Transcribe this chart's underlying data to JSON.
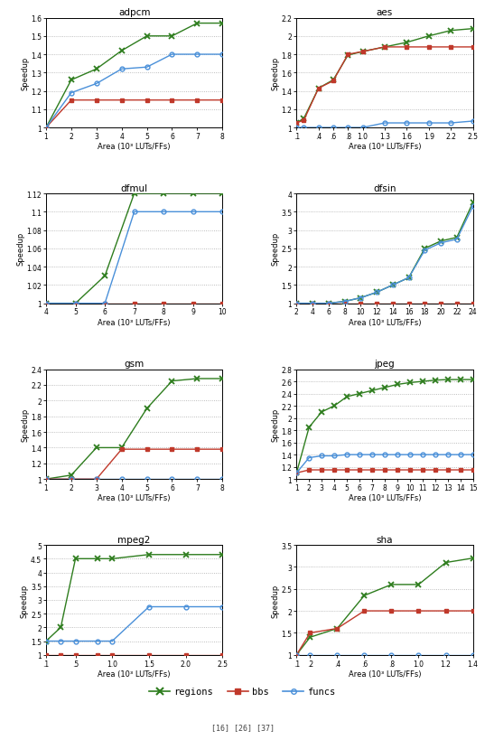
{
  "plots": [
    {
      "title": "adpcm",
      "xlabel": "Area (10³ LUTs/FFs)",
      "ylabel": "Speedup",
      "xlim": [
        1,
        8
      ],
      "ylim": [
        1.0,
        1.6
      ],
      "xticks": [
        1,
        2,
        3,
        4,
        5,
        6,
        7,
        8
      ],
      "xtick_labels": [
        "1",
        "2",
        "3",
        "4",
        "5",
        "6",
        "7",
        "8"
      ],
      "yticks": [
        1.0,
        1.1,
        1.2,
        1.3,
        1.4,
        1.5,
        1.6
      ],
      "ytick_labels": [
        "1",
        "1.1",
        "1.2",
        "1.3",
        "1.4",
        "1.5",
        "1.6"
      ],
      "regions_x": [
        1,
        2,
        3,
        4,
        5,
        6,
        7,
        8
      ],
      "regions_y": [
        1.0,
        1.26,
        1.32,
        1.42,
        1.5,
        1.5,
        1.57,
        1.57
      ],
      "bbs_x": [
        1,
        2,
        3,
        4,
        5,
        6,
        7,
        8
      ],
      "bbs_y": [
        1.0,
        1.15,
        1.15,
        1.15,
        1.15,
        1.15,
        1.15,
        1.15
      ],
      "funcs_x": [
        1,
        2,
        3,
        4,
        5,
        6,
        7,
        8
      ],
      "funcs_y": [
        1.0,
        1.19,
        1.24,
        1.32,
        1.33,
        1.4,
        1.4,
        1.4
      ]
    },
    {
      "title": "aes",
      "xlabel": "Area (10³ LUTs/FFs)",
      "ylabel": "Speedup",
      "xlim": [
        0.1,
        2.5
      ],
      "ylim": [
        1.0,
        2.2
      ],
      "xticks": [
        0.1,
        0.4,
        0.6,
        0.8,
        1.0,
        1.3,
        1.6,
        1.9,
        2.2,
        2.5
      ],
      "xtick_labels": [
        ".1",
        ".4",
        ".6",
        ".8",
        "1.0",
        "1.3",
        "1.6",
        "1.9",
        "2.2",
        "2.5"
      ],
      "yticks": [
        1.0,
        1.2,
        1.4,
        1.6,
        1.8,
        2.0,
        2.2
      ],
      "ytick_labels": [
        "1",
        "1.2",
        "1.4",
        "1.6",
        "1.8",
        "2",
        "2.2"
      ],
      "regions_x": [
        0.1,
        0.2,
        0.4,
        0.6,
        0.8,
        1.0,
        1.3,
        1.6,
        1.9,
        2.2,
        2.5
      ],
      "regions_y": [
        1.05,
        1.1,
        1.43,
        1.52,
        1.79,
        1.83,
        1.88,
        1.93,
        2.0,
        2.06,
        2.08
      ],
      "bbs_x": [
        0.1,
        0.2,
        0.4,
        0.6,
        0.8,
        1.0,
        1.3,
        1.6,
        1.9,
        2.2,
        2.5
      ],
      "bbs_y": [
        1.05,
        1.08,
        1.43,
        1.51,
        1.8,
        1.83,
        1.88,
        1.88,
        1.88,
        1.88,
        1.88
      ],
      "funcs_x": [
        0.1,
        0.2,
        0.4,
        0.6,
        0.8,
        1.0,
        1.3,
        1.6,
        1.9,
        2.2,
        2.5
      ],
      "funcs_y": [
        1.0,
        1.0,
        1.0,
        1.0,
        1.0,
        1.0,
        1.05,
        1.05,
        1.05,
        1.05,
        1.07
      ]
    },
    {
      "title": "dfmul",
      "xlabel": "Area (10³ LUTs/FFs)",
      "ylabel": "Speedup",
      "xlim": [
        4,
        10
      ],
      "ylim": [
        1.0,
        1.12
      ],
      "xticks": [
        4,
        5,
        6,
        7,
        8,
        9,
        10
      ],
      "xtick_labels": [
        "4",
        "5",
        "6",
        "7",
        "8",
        "9",
        "10"
      ],
      "yticks": [
        1.0,
        1.02,
        1.04,
        1.06,
        1.08,
        1.1,
        1.12
      ],
      "ytick_labels": [
        "1",
        "1.02",
        "1.04",
        "1.06",
        "1.08",
        "1.1",
        "1.12"
      ],
      "regions_x": [
        4,
        5,
        6,
        7,
        8,
        9,
        10
      ],
      "regions_y": [
        1.0,
        1.0,
        1.03,
        1.12,
        1.12,
        1.12,
        1.12
      ],
      "bbs_x": [
        4,
        5,
        6,
        7,
        8,
        9,
        10
      ],
      "bbs_y": [
        1.0,
        1.0,
        1.0,
        1.0,
        1.0,
        1.0,
        1.0
      ],
      "funcs_x": [
        4,
        5,
        6,
        7,
        8,
        9,
        10
      ],
      "funcs_y": [
        1.0,
        1.0,
        1.0,
        1.1,
        1.1,
        1.1,
        1.1
      ]
    },
    {
      "title": "dfsin",
      "xlabel": "Area (10³ LUTs/FFs)",
      "ylabel": "Speedup",
      "xlim": [
        2,
        24
      ],
      "ylim": [
        1.0,
        4.0
      ],
      "xticks": [
        2,
        4,
        6,
        8,
        10,
        12,
        14,
        16,
        18,
        20,
        22,
        24
      ],
      "xtick_labels": [
        "2",
        "4",
        "6",
        "8",
        "10",
        "12",
        "14",
        "16",
        "18",
        "20",
        "22",
        "24"
      ],
      "yticks": [
        1.0,
        1.5,
        2.0,
        2.5,
        3.0,
        3.5,
        4.0
      ],
      "ytick_labels": [
        "1",
        "1.5",
        "2",
        "2.5",
        "3",
        "3.5",
        "4"
      ],
      "regions_x": [
        2,
        4,
        6,
        8,
        10,
        12,
        14,
        16,
        18,
        20,
        22,
        24
      ],
      "regions_y": [
        1.0,
        1.0,
        1.0,
        1.05,
        1.15,
        1.3,
        1.5,
        1.7,
        2.5,
        2.7,
        2.8,
        3.75
      ],
      "bbs_x": [
        2,
        4,
        6,
        8,
        10,
        12,
        14,
        16,
        18,
        20,
        22,
        24
      ],
      "bbs_y": [
        1.0,
        1.0,
        1.0,
        1.0,
        1.0,
        1.0,
        1.0,
        1.0,
        1.0,
        1.0,
        1.0,
        1.0
      ],
      "funcs_x": [
        2,
        4,
        6,
        8,
        10,
        12,
        14,
        16,
        18,
        20,
        22,
        24
      ],
      "funcs_y": [
        1.0,
        1.0,
        1.0,
        1.05,
        1.15,
        1.3,
        1.5,
        1.7,
        2.45,
        2.65,
        2.75,
        3.65
      ]
    },
    {
      "title": "gsm",
      "xlabel": "Area (10³ LUTs/FFs)",
      "ylabel": "Speedup",
      "xlim": [
        1,
        8
      ],
      "ylim": [
        1.0,
        2.4
      ],
      "xticks": [
        1,
        2,
        3,
        4,
        5,
        6,
        7,
        8
      ],
      "xtick_labels": [
        "1",
        "2",
        "3",
        "4",
        "5",
        "6",
        "7",
        "8"
      ],
      "yticks": [
        1.0,
        1.2,
        1.4,
        1.6,
        1.8,
        2.0,
        2.2,
        2.4
      ],
      "ytick_labels": [
        "1",
        "1.2",
        "1.4",
        "1.6",
        "1.8",
        "2",
        "2.2",
        "2.4"
      ],
      "regions_x": [
        1,
        2,
        3,
        4,
        5,
        6,
        7,
        8
      ],
      "regions_y": [
        1.0,
        1.05,
        1.4,
        1.4,
        1.9,
        2.25,
        2.28,
        2.28
      ],
      "bbs_x": [
        1,
        2,
        3,
        4,
        5,
        6,
        7,
        8
      ],
      "bbs_y": [
        1.0,
        1.0,
        1.0,
        1.38,
        1.38,
        1.38,
        1.38,
        1.38
      ],
      "funcs_x": [
        1,
        2,
        3,
        4,
        5,
        6,
        7,
        8
      ],
      "funcs_y": [
        1.0,
        1.0,
        1.0,
        1.0,
        1.0,
        1.0,
        1.0,
        1.0
      ]
    },
    {
      "title": "jpeg",
      "xlabel": "Area (10³ LUTs/FFs)",
      "ylabel": "Speedup",
      "xlim": [
        1,
        15
      ],
      "ylim": [
        1.0,
        2.8
      ],
      "xticks": [
        1,
        2,
        3,
        4,
        5,
        6,
        7,
        8,
        9,
        10,
        11,
        12,
        13,
        14,
        15
      ],
      "xtick_labels": [
        "1",
        "2",
        "3",
        "4",
        "5",
        "6",
        "7",
        "8",
        "9",
        "10",
        "11",
        "12",
        "13",
        "14",
        "15"
      ],
      "yticks": [
        1.0,
        1.2,
        1.4,
        1.6,
        1.8,
        2.0,
        2.2,
        2.4,
        2.6,
        2.8
      ],
      "ytick_labels": [
        "1",
        "1.2",
        "1.4",
        "1.6",
        "1.8",
        "2",
        "2.2",
        "2.4",
        "2.6",
        "2.8"
      ],
      "regions_x": [
        1,
        2,
        3,
        4,
        5,
        6,
        7,
        8,
        9,
        10,
        11,
        12,
        13,
        14,
        15
      ],
      "regions_y": [
        1.1,
        1.85,
        2.1,
        2.2,
        2.35,
        2.4,
        2.45,
        2.5,
        2.55,
        2.58,
        2.6,
        2.62,
        2.63,
        2.63,
        2.63
      ],
      "bbs_x": [
        1,
        2,
        3,
        4,
        5,
        6,
        7,
        8,
        9,
        10,
        11,
        12,
        13,
        14,
        15
      ],
      "bbs_y": [
        1.1,
        1.15,
        1.15,
        1.15,
        1.15,
        1.15,
        1.15,
        1.15,
        1.15,
        1.15,
        1.15,
        1.15,
        1.15,
        1.15,
        1.15
      ],
      "funcs_x": [
        1,
        2,
        3,
        4,
        5,
        6,
        7,
        8,
        9,
        10,
        11,
        12,
        13,
        14,
        15
      ],
      "funcs_y": [
        1.1,
        1.35,
        1.38,
        1.38,
        1.4,
        1.4,
        1.4,
        1.4,
        1.4,
        1.4,
        1.4,
        1.4,
        1.4,
        1.4,
        1.4
      ]
    },
    {
      "title": "mpeg2",
      "xlabel": "Area (10³ LUTs/FFs)",
      "ylabel": "Speedup",
      "xlim": [
        0.1,
        2.5
      ],
      "ylim": [
        1.0,
        5.0
      ],
      "xticks": [
        0.1,
        0.5,
        1.0,
        1.5,
        2.0,
        2.5
      ],
      "xtick_labels": [
        ".1",
        ".5",
        "1.0",
        "1.5",
        "2.0",
        "2.5"
      ],
      "yticks": [
        1.0,
        1.5,
        2.0,
        2.5,
        3.0,
        3.5,
        4.0,
        4.5,
        5.0
      ],
      "ytick_labels": [
        "1",
        "1.5",
        "2",
        "2.5",
        "3",
        "3.5",
        "4",
        "4.5",
        "5"
      ],
      "regions_x": [
        0.1,
        0.3,
        0.5,
        0.8,
        1.0,
        1.5,
        2.0,
        2.5
      ],
      "regions_y": [
        1.5,
        2.0,
        4.5,
        4.5,
        4.5,
        4.65,
        4.65,
        4.65
      ],
      "bbs_x": [
        0.1,
        0.3,
        0.5,
        0.8,
        1.0,
        1.5,
        2.0,
        2.5
      ],
      "bbs_y": [
        1.0,
        1.0,
        1.0,
        1.0,
        1.0,
        1.0,
        1.0,
        1.0
      ],
      "funcs_x": [
        0.1,
        0.3,
        0.5,
        0.8,
        1.0,
        1.5,
        2.0,
        2.5
      ],
      "funcs_y": [
        1.5,
        1.5,
        1.5,
        1.5,
        1.5,
        2.75,
        2.75,
        2.75
      ]
    },
    {
      "title": "sha",
      "xlabel": "Area (10³ LUTs/FFs)",
      "ylabel": "Speedup",
      "xlim": [
        0.1,
        1.4
      ],
      "ylim": [
        1.0,
        3.5
      ],
      "xticks": [
        0.1,
        0.2,
        0.4,
        0.6,
        0.8,
        1.0,
        1.2,
        1.4
      ],
      "xtick_labels": [
        ".1",
        ".2",
        ".4",
        ".6",
        ".8",
        "1.0",
        "1.2",
        "1.4"
      ],
      "yticks": [
        1.0,
        1.5,
        2.0,
        2.5,
        3.0,
        3.5
      ],
      "ytick_labels": [
        "1",
        "1.5",
        "2",
        "2.5",
        "3",
        "3.5"
      ],
      "regions_x": [
        0.1,
        0.2,
        0.4,
        0.6,
        0.8,
        1.0,
        1.2,
        1.4
      ],
      "regions_y": [
        1.0,
        1.4,
        1.6,
        2.35,
        2.6,
        2.6,
        3.1,
        3.2
      ],
      "bbs_x": [
        0.1,
        0.2,
        0.4,
        0.6,
        0.8,
        1.0,
        1.2,
        1.4
      ],
      "bbs_y": [
        1.0,
        1.5,
        1.6,
        2.0,
        2.0,
        2.0,
        2.0,
        2.0
      ],
      "funcs_x": [
        0.1,
        0.2,
        0.4,
        0.6,
        0.8,
        1.0,
        1.2,
        1.4
      ],
      "funcs_y": [
        1.0,
        1.0,
        1.0,
        1.0,
        1.0,
        1.0,
        1.0,
        1.0
      ]
    }
  ],
  "colors": {
    "regions": "#2e7d1e",
    "bbs": "#c0392b",
    "funcs": "#4a90d9"
  },
  "legend": {
    "regions_label": "regions",
    "bbs_label": "bbs",
    "funcs_label": "funcs",
    "refs": "[16] [26] [37]"
  },
  "background_color": "#ffffff"
}
